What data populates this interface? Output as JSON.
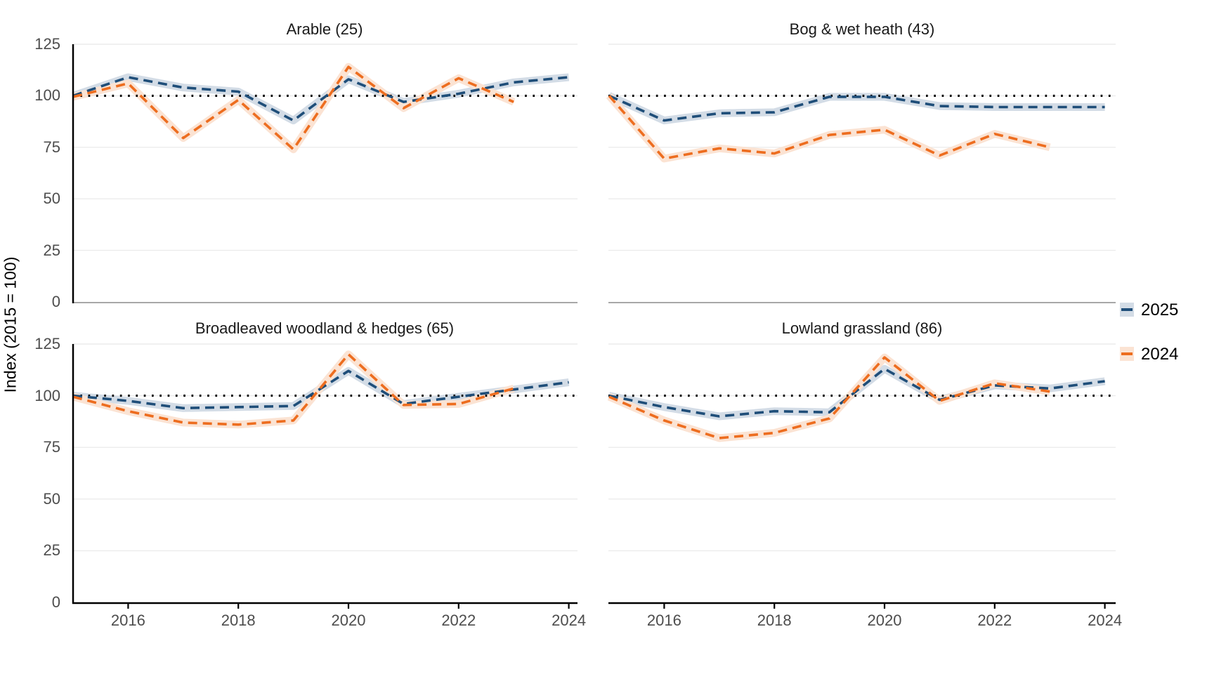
{
  "axes": {
    "y_label": "Index (2015 = 100)",
    "y_ticks": [
      0,
      25,
      50,
      75,
      100,
      125
    ],
    "x_ticks": [
      2016,
      2018,
      2020,
      2022,
      2024
    ],
    "x_range": [
      2015,
      2024
    ],
    "baseline_dotted": 100
  },
  "legend": {
    "position": "right",
    "items": [
      {
        "label": "2025",
        "line_color": "#1f4e79",
        "ribbon_color": "#d3dce6"
      },
      {
        "label": "2024",
        "line_color": "#ed6d1f",
        "ribbon_color": "#fbe3d3"
      }
    ]
  },
  "colors": {
    "blue_line": "#1f4e79",
    "blue_ribbon": "#d3dce6",
    "orange_line": "#ed6d1f",
    "orange_ribbon": "#fbe3d3",
    "gridline": "#ececec",
    "zero_line_top_panels": "#8c8c8c",
    "axis_line": "#000000",
    "dotted_baseline": "#000000",
    "tick_label": "#4d4d4d",
    "title": "#1a1a1a"
  },
  "chart_data": {
    "type": "line",
    "x": [
      2015,
      2016,
      2017,
      2018,
      2019,
      2020,
      2021,
      2022,
      2023,
      2024
    ],
    "ylabel": "Index (2015 = 100)",
    "ylim": [
      0,
      125
    ],
    "grid": "horizontal-only",
    "legend_position": "right",
    "baseline": 100,
    "note": "dashed lines with confidence ribbons; series 2024 ends at year 2023",
    "panels": [
      {
        "title": "Arable (25)",
        "series": [
          {
            "name": "2025",
            "values": [
              100,
              109,
              104,
              102,
              88,
              108,
              97,
              101,
              106.5,
              109
            ]
          },
          {
            "name": "2024",
            "values": [
              99.5,
              106,
              79.5,
              98,
              74,
              114,
              94,
              108.5,
              97
            ]
          }
        ]
      },
      {
        "title": "Bog & wet heath (43)",
        "series": [
          {
            "name": "2025",
            "values": [
              100,
              88,
              91.5,
              92,
              99.5,
              99.5,
              95,
              94.5,
              94.5,
              94.5
            ]
          },
          {
            "name": "2024",
            "values": [
              100,
              69.5,
              74.5,
              72,
              81,
              83.5,
              71,
              81.5,
              75
            ]
          }
        ]
      },
      {
        "title": "Broadleaved woodland & hedges (65)",
        "series": [
          {
            "name": "2025",
            "values": [
              100,
              97.5,
              94,
              94.5,
              95,
              112,
              96,
              99.5,
              103,
              106.5
            ]
          },
          {
            "name": "2024",
            "values": [
              99.5,
              92.5,
              87,
              86,
              88,
              120,
              95.5,
              96,
              103.5
            ]
          }
        ]
      },
      {
        "title": "Lowland grassland (86)",
        "series": [
          {
            "name": "2025",
            "values": [
              100,
              94.5,
              90,
              92.5,
              92,
              113,
              98,
              105,
              103.5,
              107
            ]
          },
          {
            "name": "2024",
            "values": [
              99.5,
              88,
              79.5,
              82,
              89,
              118.5,
              97.5,
              106,
              102
            ]
          }
        ]
      }
    ]
  }
}
